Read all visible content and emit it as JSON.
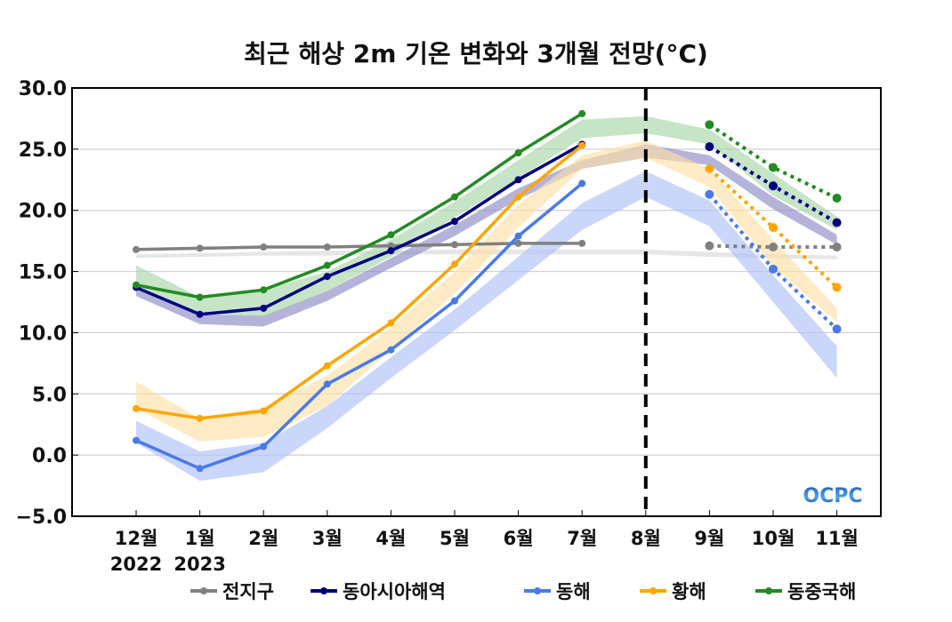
{
  "chart_data": {
    "type": "line",
    "title": "최근 해상 2m 기온 변화와 3개월 전망(°C)",
    "xlabel": "",
    "ylabel": "",
    "categories": [
      "12월",
      "1월",
      "2월",
      "3월",
      "4월",
      "5월",
      "6월",
      "7월",
      "8월",
      "9월",
      "10월",
      "11월"
    ],
    "year_labels": [
      {
        "category_index": 0,
        "text": "2022"
      },
      {
        "category_index": 1,
        "text": "2023"
      }
    ],
    "ylim": [
      -5.0,
      30.0
    ],
    "yticks": [
      30.0,
      25.0,
      20.0,
      15.0,
      10.0,
      5.0,
      0.0,
      -5.0
    ],
    "ytick_labels": [
      "30.0",
      "25.0",
      "20.0",
      "15.0",
      "10.0",
      "5.0",
      "0.0",
      "−5.0"
    ],
    "grid": "horizontal",
    "forecast_divider_category": "8월",
    "legend_position": "bottom",
    "watermark": "OCPC",
    "series": [
      {
        "name": "전지구",
        "color": "#808080",
        "band_color": "#d9d9d9",
        "observed": [
          16.8,
          16.9,
          17.0,
          17.0,
          17.1,
          17.2,
          17.3,
          17.3,
          null,
          null,
          null,
          null
        ],
        "forecast": [
          null,
          null,
          null,
          null,
          null,
          null,
          null,
          null,
          null,
          17.1,
          17.0,
          17.0
        ],
        "band_low": [
          16.1,
          16.2,
          16.3,
          16.3,
          16.4,
          16.4,
          16.4,
          16.4,
          16.4,
          16.2,
          16.1,
          16.0
        ],
        "band_high": [
          16.4,
          16.5,
          16.6,
          16.7,
          16.7,
          16.8,
          16.8,
          16.8,
          16.8,
          16.6,
          16.4,
          16.3
        ]
      },
      {
        "name": "동아시아해역",
        "color": "#00007f",
        "band_color": "#8c8cc8",
        "observed": [
          13.7,
          11.5,
          12.0,
          14.6,
          16.7,
          19.1,
          22.5,
          25.4,
          null,
          null,
          null,
          null
        ],
        "forecast": [
          null,
          null,
          null,
          null,
          null,
          null,
          null,
          null,
          null,
          25.2,
          22.0,
          19.0
        ],
        "band_low": [
          13.0,
          10.7,
          10.5,
          12.6,
          15.3,
          17.9,
          20.9,
          23.4,
          24.3,
          23.7,
          20.1,
          17.2
        ],
        "band_high": [
          13.8,
          11.5,
          11.4,
          13.4,
          16.1,
          18.8,
          21.8,
          24.1,
          25.4,
          24.5,
          21.1,
          18.0
        ]
      },
      {
        "name": "동해",
        "color": "#4a7ae8",
        "band_color": "#aec1f7",
        "observed": [
          1.2,
          -1.1,
          0.7,
          5.8,
          8.6,
          12.6,
          17.9,
          22.2,
          null,
          null,
          null,
          null
        ],
        "forecast": [
          null,
          null,
          null,
          null,
          null,
          null,
          null,
          null,
          null,
          21.3,
          15.2,
          10.3
        ],
        "band_low": [
          1.0,
          -2.1,
          -1.4,
          2.2,
          6.3,
          10.2,
          14.3,
          18.4,
          21.1,
          18.7,
          12.5,
          6.3
        ],
        "band_high": [
          2.8,
          0.3,
          1.0,
          4.0,
          8.0,
          11.9,
          16.2,
          20.6,
          23.2,
          20.8,
          14.7,
          8.9
        ]
      },
      {
        "name": "황해",
        "color": "#ffa500",
        "band_color": "#fddfa6",
        "observed": [
          3.8,
          3.0,
          3.6,
          7.3,
          10.8,
          15.6,
          21.1,
          25.3,
          null,
          null,
          null,
          null
        ],
        "forecast": [
          null,
          null,
          null,
          null,
          null,
          null,
          null,
          null,
          null,
          23.4,
          18.6,
          13.7
        ],
        "band_low": [
          3.8,
          1.1,
          1.5,
          4.0,
          8.6,
          13.2,
          18.6,
          23.4,
          24.3,
          21.9,
          15.4,
          10.9
        ],
        "band_high": [
          6.0,
          3.0,
          3.9,
          6.5,
          10.4,
          15.0,
          20.5,
          24.5,
          25.7,
          23.4,
          17.6,
          12.0
        ]
      },
      {
        "name": "동중국해",
        "color": "#228b22",
        "band_color": "#a8d5a8",
        "observed": [
          13.9,
          12.9,
          13.5,
          15.5,
          18.0,
          21.1,
          24.7,
          27.9,
          null,
          null,
          null,
          null
        ],
        "forecast": [
          null,
          null,
          null,
          null,
          null,
          null,
          null,
          null,
          null,
          27.0,
          23.5,
          21.0
        ],
        "band_low": [
          13.9,
          11.6,
          11.3,
          13.4,
          16.2,
          19.4,
          22.6,
          25.9,
          26.3,
          25.4,
          21.2,
          18.4
        ],
        "band_high": [
          15.5,
          12.9,
          13.5,
          15.0,
          17.6,
          20.7,
          24.1,
          27.4,
          27.7,
          26.6,
          23.0,
          19.5
        ]
      }
    ]
  }
}
